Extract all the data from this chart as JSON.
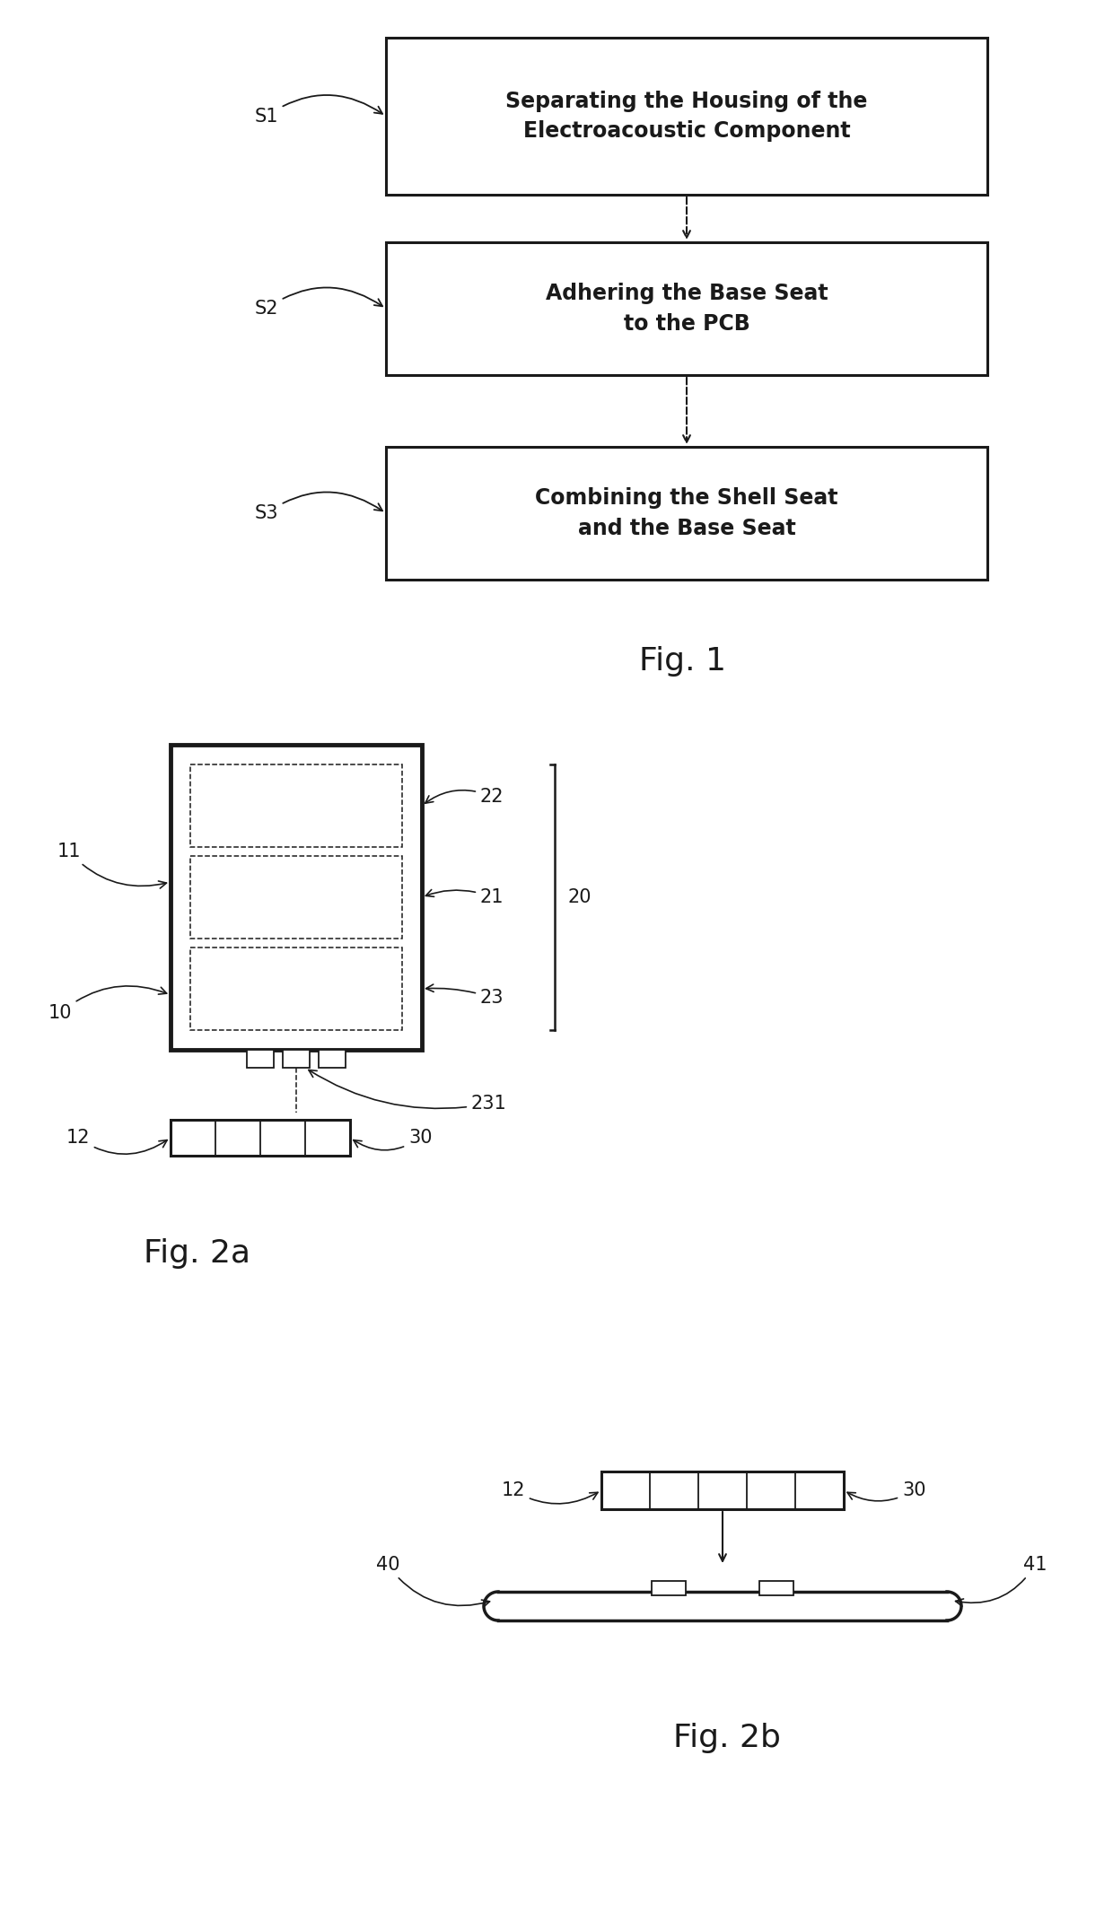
{
  "bg_color": "#ffffff",
  "fig_width": 12.4,
  "fig_height": 21.51,
  "dpi": 100,
  "fig1": {
    "title": "Fig. 1",
    "box1_text": "Separating the Housing of the\nElectroacoustic Component",
    "box2_text": "Adhering the Base Seat\nto the PCB",
    "box3_text": "Combining the Shell Seat\nand the Base Seat",
    "s1": "S1",
    "s2": "S2",
    "s3": "S3"
  },
  "fig2a": {
    "title": "Fig. 2a"
  },
  "fig2b": {
    "title": "Fig. 2b"
  }
}
